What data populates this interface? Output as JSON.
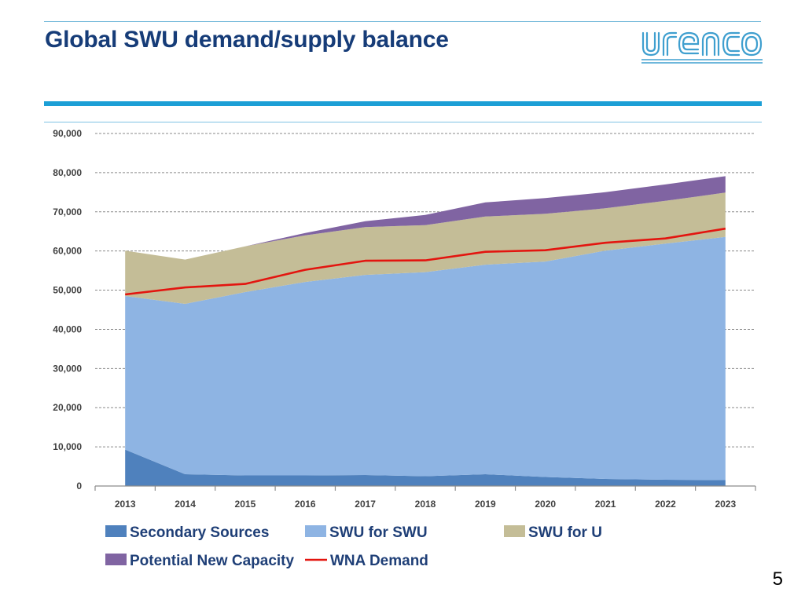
{
  "header": {
    "title": "Global SWU demand/supply balance",
    "logo_text": "urenco"
  },
  "page_number": "5",
  "colors": {
    "title": "#163c78",
    "accent_bar": "#1c9fd6",
    "secondary_sources": "#4f81bd",
    "swu_for_swu": "#8eb4e3",
    "swu_for_u": "#c4bd97",
    "potential_new_capacity": "#8064a2",
    "wna_demand": "#e3150f"
  },
  "chart_data": {
    "type": "area",
    "stacked": true,
    "categories": [
      "2013",
      "2014",
      "2015",
      "2016",
      "2017",
      "2018",
      "2019",
      "2020",
      "2021",
      "2022",
      "2023"
    ],
    "ylim": [
      0,
      90000
    ],
    "yticks": [
      0,
      10000,
      20000,
      30000,
      40000,
      50000,
      60000,
      70000,
      80000,
      90000
    ],
    "ytick_labels": [
      "0",
      "10,000",
      "20,000",
      "30,000",
      "40,000",
      "50,000",
      "60,000",
      "70,000",
      "80,000",
      "90,000"
    ],
    "grid": true,
    "legend_position": "bottom",
    "series": [
      {
        "name": "Secondary Sources",
        "kind": "area",
        "color": "#4f81bd",
        "values": [
          9300,
          3000,
          2700,
          2700,
          2800,
          2500,
          3000,
          2300,
          1800,
          1600,
          1500
        ]
      },
      {
        "name": "SWU for SWU",
        "kind": "area",
        "color": "#8eb4e3",
        "values": [
          39200,
          43500,
          46800,
          49400,
          51100,
          52100,
          53500,
          55000,
          58300,
          60300,
          62100
        ]
      },
      {
        "name": "SWU for U",
        "kind": "area",
        "color": "#c4bd97",
        "values": [
          11600,
          11300,
          11700,
          11900,
          12200,
          12000,
          12300,
          12200,
          10800,
          10900,
          11300
        ]
      },
      {
        "name": "Potential New Capacity",
        "kind": "area",
        "color": "#8064a2",
        "values": [
          0,
          0,
          0,
          600,
          1500,
          2600,
          3600,
          4000,
          4100,
          4200,
          4200
        ]
      },
      {
        "name": "WNA Demand",
        "kind": "line",
        "color": "#e3150f",
        "values": [
          48900,
          50700,
          51600,
          55200,
          57500,
          57600,
          59800,
          60200,
          62100,
          63200,
          65700
        ]
      }
    ]
  }
}
